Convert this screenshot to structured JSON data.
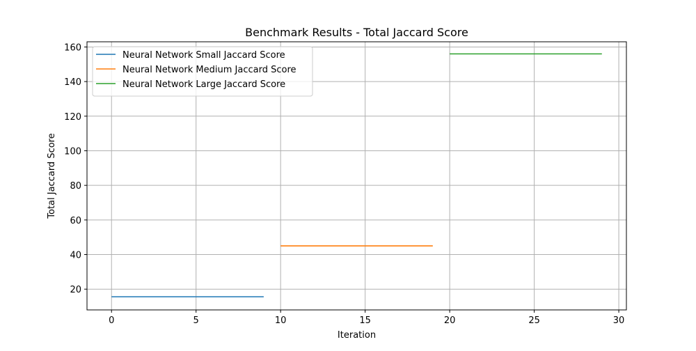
{
  "chart_data": {
    "type": "line",
    "title": "Benchmark Results - Total Jaccard Score",
    "xlabel": "Iteration",
    "ylabel": "Total Jaccard Score",
    "xlim": [
      -1.45,
      30.45
    ],
    "ylim": [
      8.0,
      163.0
    ],
    "xticks": [
      0,
      5,
      10,
      15,
      20,
      25,
      30
    ],
    "yticks": [
      20,
      40,
      60,
      80,
      100,
      120,
      140,
      160
    ],
    "grid": true,
    "legend_position": "top-left",
    "series": [
      {
        "name": "Neural Network Small Jaccard Score",
        "color": "#1f77b4",
        "x": [
          0,
          1,
          2,
          3,
          4,
          5,
          6,
          7,
          8,
          9
        ],
        "y": [
          15.6,
          15.6,
          15.6,
          15.6,
          15.6,
          15.6,
          15.6,
          15.6,
          15.6,
          15.6
        ]
      },
      {
        "name": "Neural Network Medium Jaccard Score",
        "color": "#ff7f0e",
        "x": [
          10,
          11,
          12,
          13,
          14,
          15,
          16,
          17,
          18,
          19
        ],
        "y": [
          45.0,
          45.0,
          45.0,
          45.0,
          45.0,
          45.0,
          45.0,
          45.0,
          45.0,
          45.0
        ]
      },
      {
        "name": "Neural Network Large Jaccard Score",
        "color": "#2ca02c",
        "x": [
          20,
          21,
          22,
          23,
          24,
          25,
          26,
          27,
          28,
          29
        ],
        "y": [
          156.0,
          156.0,
          156.0,
          156.0,
          156.0,
          156.0,
          156.0,
          156.0,
          156.0,
          156.0
        ]
      }
    ]
  }
}
